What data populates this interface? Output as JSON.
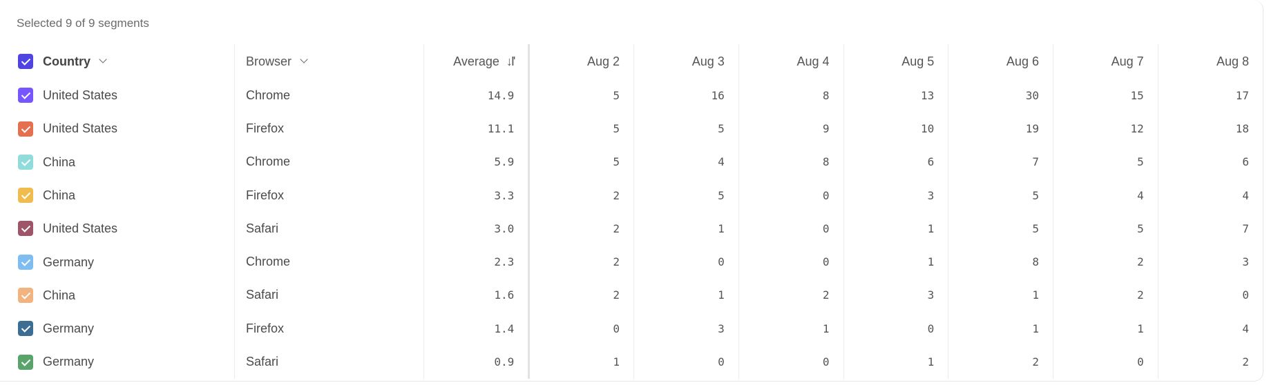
{
  "caption": "Selected 9 of 9 segments",
  "header": {
    "checkbox_color": "#4F44E0",
    "country": "Country",
    "browser": "Browser",
    "average": "Average",
    "sort_icon": "sort-descending-icon",
    "dates": [
      "Aug 2",
      "Aug 3",
      "Aug 4",
      "Aug 5",
      "Aug 6",
      "Aug 7",
      "Aug 8"
    ]
  },
  "rows": [
    {
      "country": "United States",
      "browser": "Chrome",
      "average": "14.9",
      "color": "#7856FF",
      "values": [
        "5",
        "16",
        "8",
        "13",
        "30",
        "15",
        "17"
      ]
    },
    {
      "country": "United States",
      "browser": "Firefox",
      "average": "11.1",
      "color": "#E4704F",
      "values": [
        "5",
        "5",
        "9",
        "10",
        "19",
        "12",
        "18"
      ]
    },
    {
      "country": "China",
      "browser": "Chrome",
      "average": "5.9",
      "color": "#8FDCDA",
      "values": [
        "5",
        "4",
        "8",
        "6",
        "7",
        "5",
        "6"
      ]
    },
    {
      "country": "China",
      "browser": "Firefox",
      "average": "3.3",
      "color": "#F0BC4E",
      "values": [
        "2",
        "5",
        "0",
        "3",
        "5",
        "4",
        "4"
      ]
    },
    {
      "country": "United States",
      "browser": "Safari",
      "average": "3.0",
      "color": "#9E5469",
      "values": [
        "2",
        "1",
        "0",
        "1",
        "5",
        "5",
        "7"
      ]
    },
    {
      "country": "Germany",
      "browser": "Chrome",
      "average": "2.3",
      "color": "#7DBDF2",
      "values": [
        "2",
        "0",
        "0",
        "1",
        "8",
        "2",
        "3"
      ]
    },
    {
      "country": "China",
      "browser": "Safari",
      "average": "1.6",
      "color": "#F2B37E",
      "values": [
        "2",
        "1",
        "2",
        "3",
        "1",
        "2",
        "0"
      ]
    },
    {
      "country": "Germany",
      "browser": "Firefox",
      "average": "1.4",
      "color": "#3C6E94",
      "values": [
        "0",
        "3",
        "1",
        "0",
        "1",
        "1",
        "4"
      ]
    },
    {
      "country": "Germany",
      "browser": "Safari",
      "average": "0.9",
      "color": "#5AA46C",
      "values": [
        "1",
        "0",
        "0",
        "1",
        "2",
        "0",
        "2"
      ]
    }
  ]
}
